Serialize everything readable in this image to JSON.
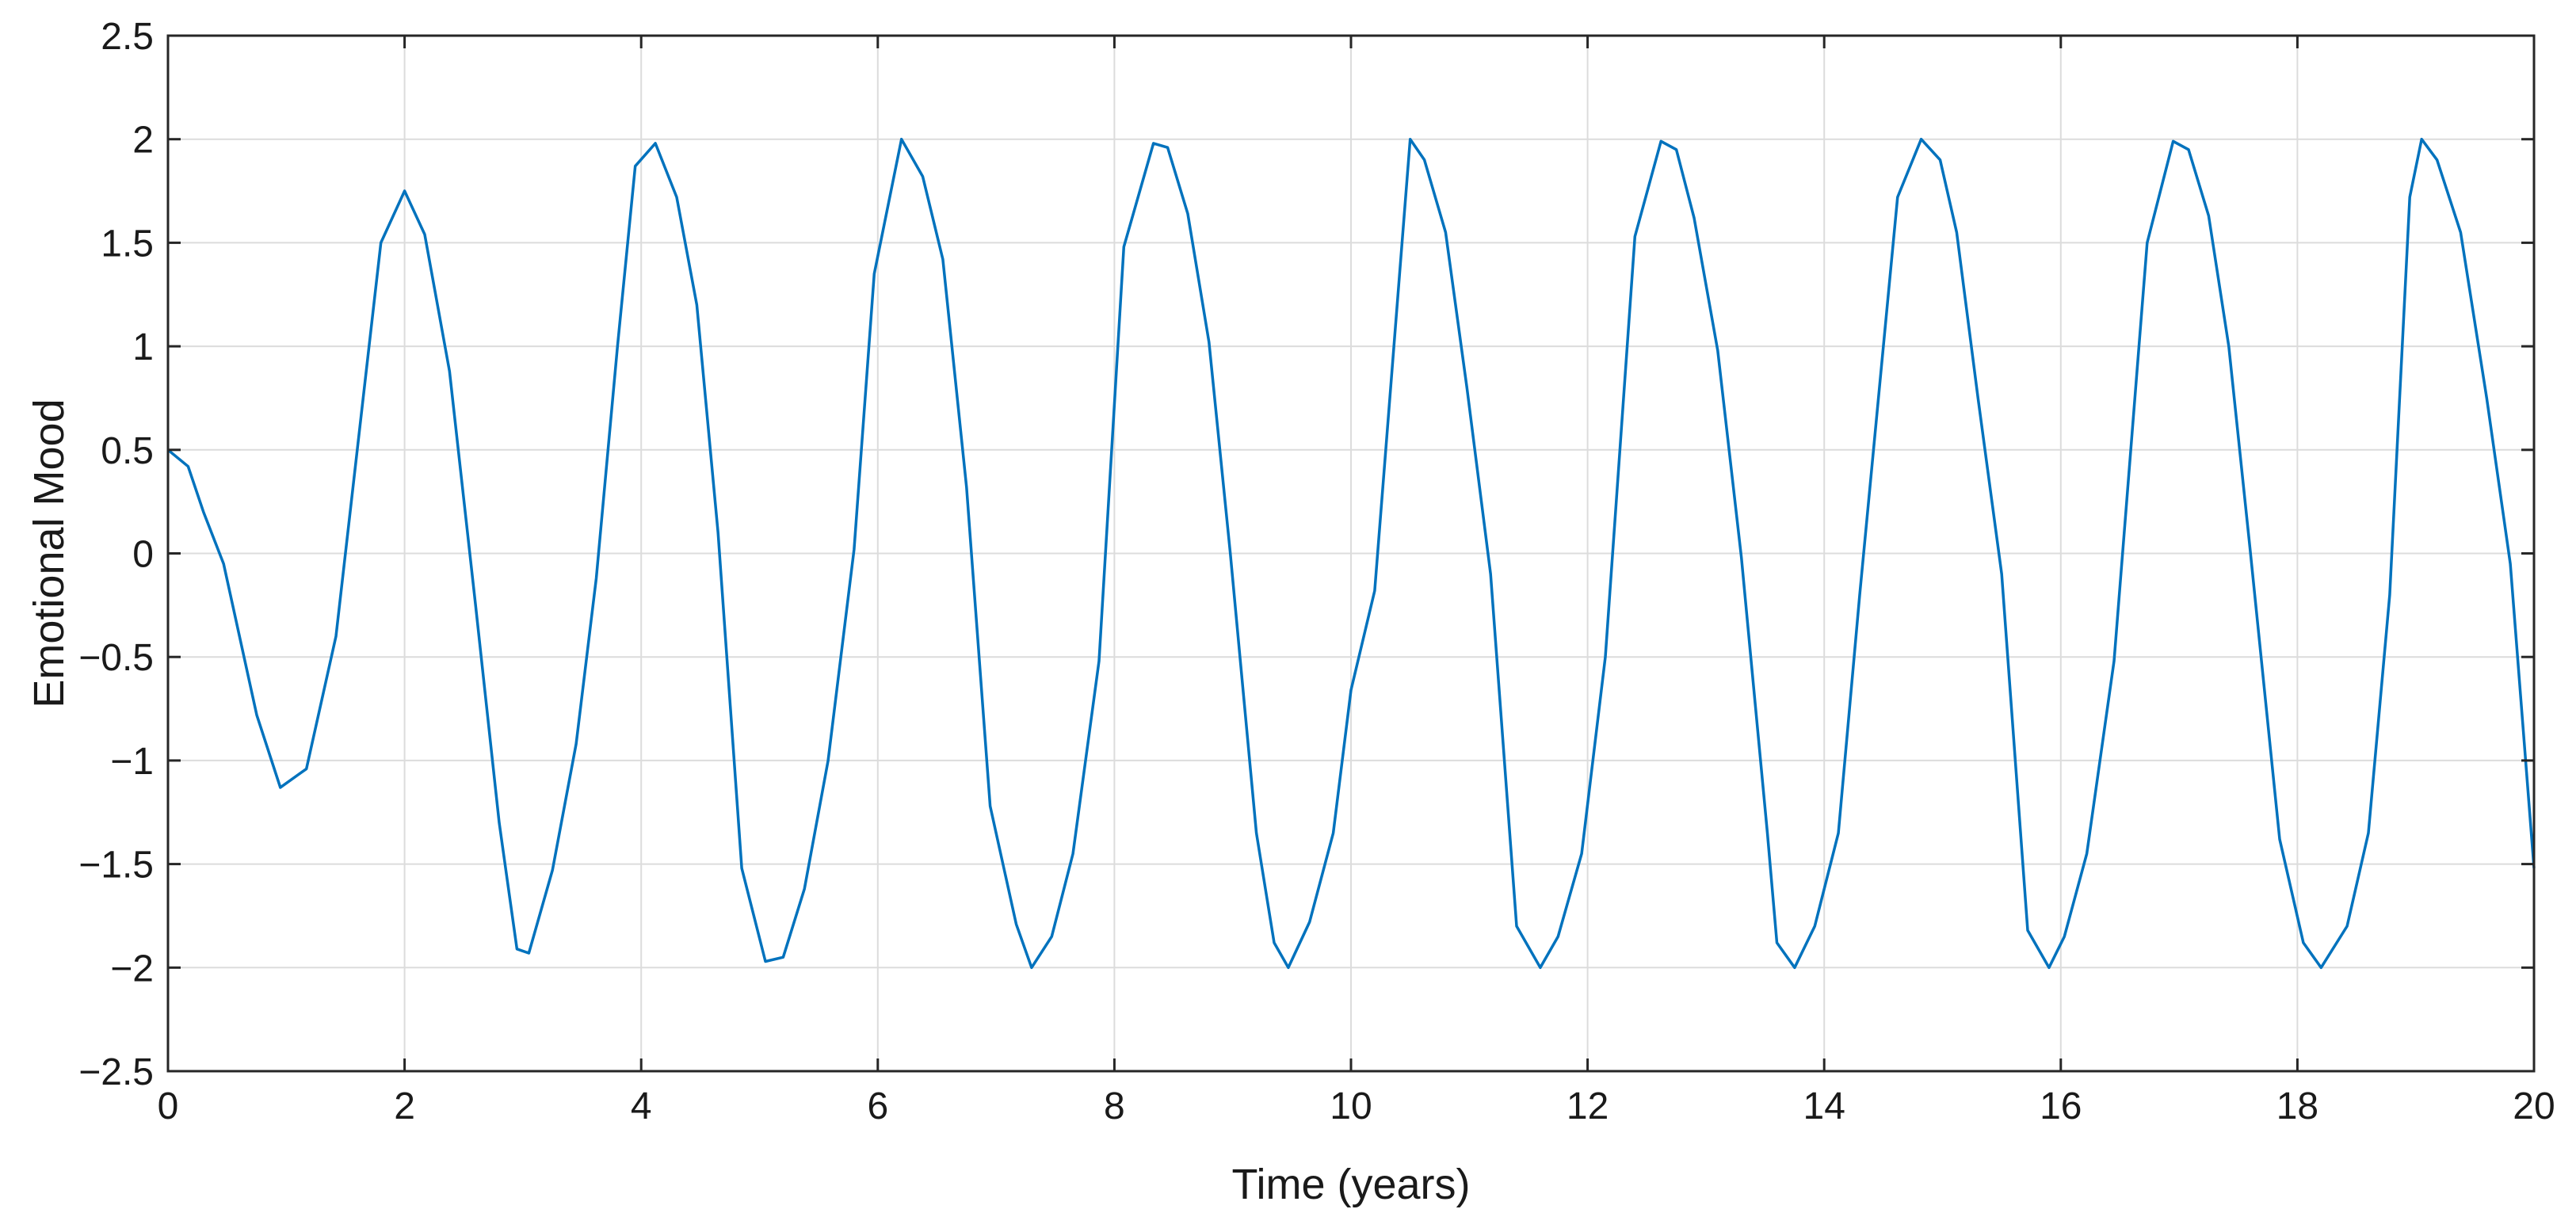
{
  "chart_data": {
    "type": "line",
    "title": "",
    "xlabel": "Time (years)",
    "ylabel": "Emotional Mood",
    "xlim": [
      0,
      20
    ],
    "ylim": [
      -2.5,
      2.5
    ],
    "grid": true,
    "x_ticks": [
      0,
      2,
      4,
      6,
      8,
      10,
      12,
      14,
      16,
      18,
      20
    ],
    "y_ticks": [
      -2.5,
      -2,
      -1.5,
      -1,
      -0.5,
      0,
      0.5,
      1,
      1.5,
      2,
      2.5
    ],
    "x_tick_labels": [
      "0",
      "2",
      "4",
      "6",
      "8",
      "10",
      "12",
      "14",
      "16",
      "18",
      "20"
    ],
    "y_tick_labels": [
      "−2.5",
      "−2",
      "−1.5",
      "−1",
      "−0.5",
      "0",
      "0.5",
      "1",
      "1.5",
      "2",
      "2.5"
    ],
    "series": [
      {
        "color": "#0072bd",
        "x": [
          0,
          0.17,
          0.3,
          0.47,
          0.75,
          0.95,
          1.17,
          1.42,
          1.8,
          2.0,
          2.17,
          2.38,
          2.6,
          2.8,
          2.95,
          3.05,
          3.25,
          3.45,
          3.62,
          3.8,
          3.95,
          4.12,
          4.3,
          4.47,
          4.65,
          4.85,
          5.05,
          5.2,
          5.38,
          5.58,
          5.8,
          5.97,
          6.2,
          6.38,
          6.55,
          6.75,
          6.95,
          7.17,
          7.3,
          7.47,
          7.65,
          7.87,
          8.08,
          8.33,
          8.45,
          8.62,
          8.8,
          8.98,
          9.2,
          9.35,
          9.47,
          9.65,
          9.85,
          10.0,
          10.2,
          10.5,
          10.62,
          10.8,
          10.98,
          11.18,
          11.4,
          11.6,
          11.75,
          11.95,
          12.15,
          12.4,
          12.62,
          12.75,
          12.9,
          13.1,
          13.3,
          13.52,
          13.6,
          13.75,
          13.92,
          14.12,
          14.3,
          14.62,
          14.82,
          14.98,
          15.12,
          15.3,
          15.5,
          15.72,
          15.9,
          16.03,
          16.22,
          16.45,
          16.73,
          16.95,
          17.08,
          17.25,
          17.42,
          17.6,
          17.85,
          18.05,
          18.2,
          18.42,
          18.6,
          18.78,
          18.95,
          19.05,
          19.18,
          19.38,
          19.6,
          19.8,
          20.0
        ],
        "y": [
          0.5,
          0.42,
          0.2,
          -0.05,
          -0.78,
          -1.13,
          -1.04,
          -0.4,
          1.5,
          1.75,
          1.54,
          0.88,
          -0.25,
          -1.3,
          -1.91,
          -1.93,
          -1.53,
          -0.92,
          -0.12,
          1.0,
          1.87,
          1.98,
          1.72,
          1.2,
          0.1,
          -1.52,
          -1.97,
          -1.95,
          -1.62,
          -1.0,
          0.02,
          1.35,
          2.0,
          1.82,
          1.42,
          0.32,
          -1.22,
          -1.79,
          -2.0,
          -1.85,
          -1.45,
          -0.52,
          1.48,
          1.98,
          1.96,
          1.64,
          1.02,
          0.0,
          -1.35,
          -1.88,
          -2.0,
          -1.78,
          -1.35,
          -0.66,
          -0.18,
          2.0,
          1.9,
          1.55,
          0.8,
          -0.1,
          -1.8,
          -2.0,
          -1.85,
          -1.45,
          -0.5,
          1.53,
          1.99,
          1.95,
          1.62,
          0.98,
          -0.02,
          -1.35,
          -1.88,
          -2.0,
          -1.8,
          -1.35,
          -0.2,
          1.72,
          2.0,
          1.9,
          1.55,
          0.75,
          -0.1,
          -1.82,
          -2.0,
          -1.85,
          -1.45,
          -0.52,
          1.5,
          1.99,
          1.95,
          1.63,
          1.0,
          0.02,
          -1.38,
          -1.88,
          -2.0,
          -1.8,
          -1.35,
          -0.2,
          1.72,
          2.0,
          1.9,
          1.55,
          0.75,
          -0.05,
          -1.52
        ]
      }
    ]
  }
}
